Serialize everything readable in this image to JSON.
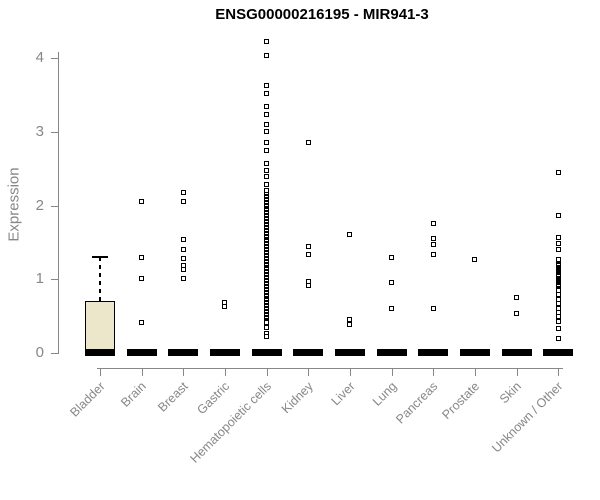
{
  "chart_data": {
    "type": "boxplot-scatter",
    "title": "ENSG00000216195 - MIR941-3",
    "xlabel": "",
    "ylabel": "Expression",
    "yticks": [
      0,
      1,
      2,
      3,
      4
    ],
    "ylim": [
      0,
      4.25
    ],
    "grid": "off",
    "legend": "none",
    "point_marker": "open-square",
    "categories": [
      "Bladder",
      "Brain",
      "Breast",
      "Gastric",
      "Hematopoietic cells",
      "Kidney",
      "Liver",
      "Lung",
      "Pancreas",
      "Prostate",
      "Skin",
      "Unknown / Other"
    ],
    "zero_bar_note": "every category shows a thick black bar at Expression = 0",
    "series": [
      {
        "category": "Bladder",
        "box": {
          "q1": 0,
          "median": 0,
          "q3": 0.71,
          "upper_whisker": 1.3
        },
        "points": []
      },
      {
        "category": "Brain",
        "points": [
          2.05,
          1.3,
          1.01,
          0.41
        ]
      },
      {
        "category": "Breast",
        "points": [
          2.17,
          2.06,
          1.54,
          1.4,
          1.28,
          1.19,
          1.13,
          1.01
        ]
      },
      {
        "category": "Gastric",
        "points": [
          0.68,
          0.63
        ]
      },
      {
        "category": "Hematopoietic cells",
        "points": [
          4.23,
          4.03,
          3.63,
          3.52,
          3.34,
          3.23,
          3.1,
          3.01,
          2.85,
          2.74,
          2.57,
          2.48,
          2.39,
          2.28,
          0.42,
          0.35,
          0.27,
          0.22
        ],
        "dense_runs": [
          {
            "from": 0.48,
            "to": 2.2,
            "step": 0.02
          }
        ]
      },
      {
        "category": "Kidney",
        "points": [
          2.85,
          1.44,
          1.34,
          0.97,
          0.92
        ]
      },
      {
        "category": "Liver",
        "points": [
          1.61,
          0.45,
          0.38
        ]
      },
      {
        "category": "Lung",
        "points": [
          1.29,
          0.96,
          0.61
        ]
      },
      {
        "category": "Pancreas",
        "points": [
          1.76,
          1.55,
          1.47,
          1.34,
          0.6
        ]
      },
      {
        "category": "Prostate",
        "points": [
          1.27
        ]
      },
      {
        "category": "Skin",
        "points": [
          0.75,
          0.53
        ]
      },
      {
        "category": "Unknown / Other",
        "points": [
          2.45,
          1.86,
          1.56,
          1.49,
          1.4,
          0.85,
          0.79,
          0.73,
          0.67,
          0.61,
          0.55,
          0.49,
          0.43,
          0.33,
          0.19
        ],
        "dense_runs": [
          {
            "from": 0.92,
            "to": 1.26,
            "step": 0.015
          }
        ]
      }
    ]
  },
  "colors": {
    "background": "#ffffff",
    "axis": "#878787",
    "axis_text": "#878787",
    "title_text": "#000000",
    "point_stroke": "#000000",
    "point_fill": "#ffffff",
    "zero_bar": "#000000",
    "box_fill": "#ece7ca",
    "box_stroke": "#000000"
  }
}
